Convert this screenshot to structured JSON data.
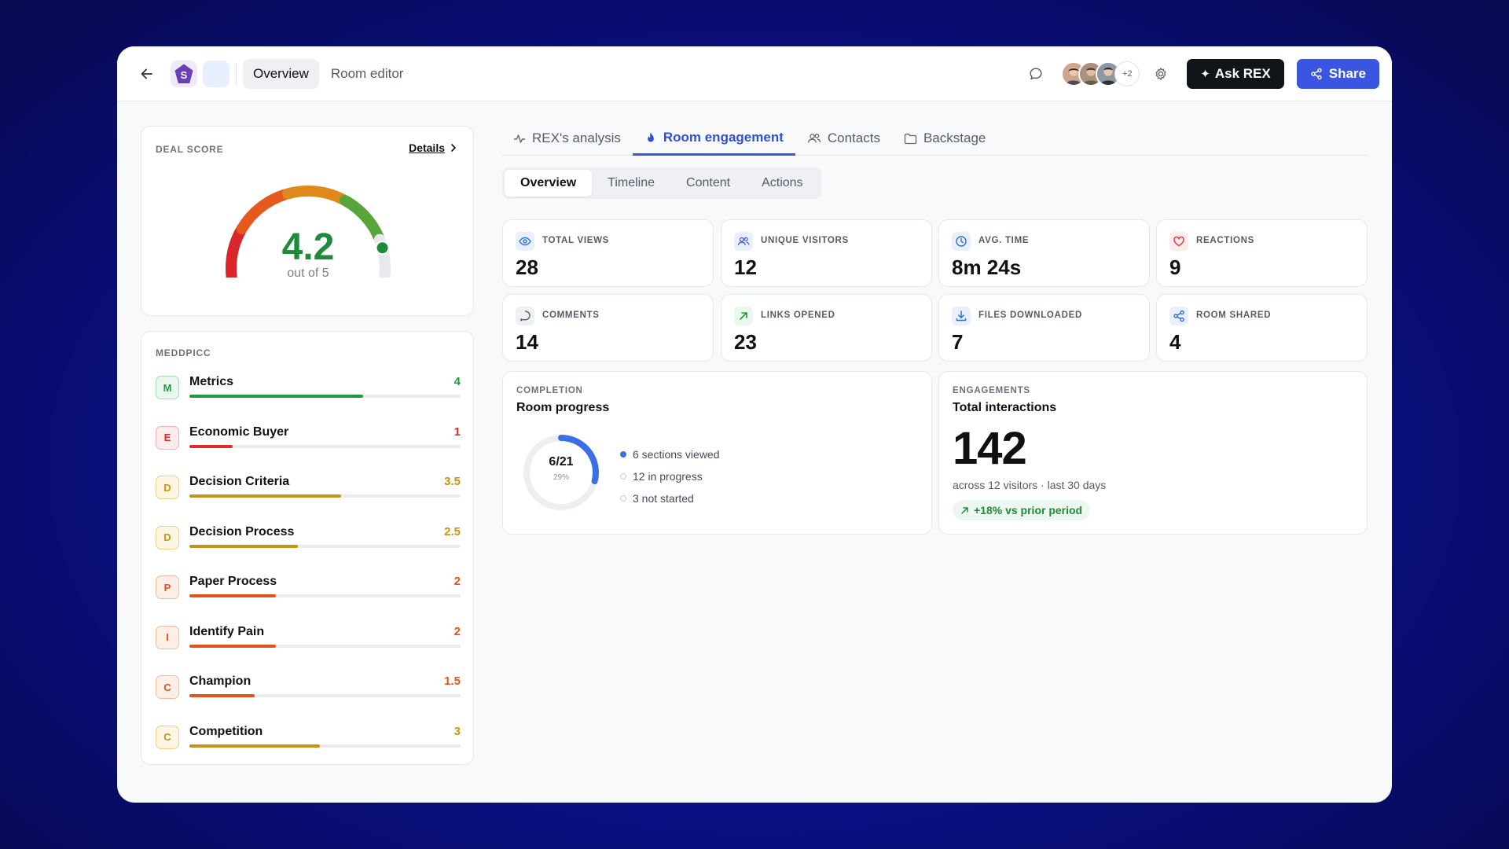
{
  "header": {
    "logo_letter": "S",
    "nav": [
      {
        "label": "Overview",
        "active": true
      },
      {
        "label": "Room editor",
        "active": false
      }
    ],
    "avatars_extra": "+2",
    "ask_label": "Ask REX",
    "share_label": "Share"
  },
  "deal_score": {
    "title": "DEAL SCORE",
    "details_label": "Details",
    "score": "4.2",
    "score_value": 4.2,
    "max": 5,
    "subtitle": "out of 5"
  },
  "meddpicc": {
    "title": "MEDDPICC",
    "max": 5,
    "items": [
      {
        "letter": "M",
        "name": "Metrics",
        "score": "4",
        "value": 4,
        "color": "#1f9a3e",
        "bg": "#e9f7ee",
        "border": "#9fdcb1"
      },
      {
        "letter": "E",
        "name": "Economic Buyer",
        "score": "1",
        "value": 1,
        "color": "#dc2c2c",
        "bg": "#fdecec",
        "border": "#f3b0b0"
      },
      {
        "letter": "D",
        "name": "Decision Criteria",
        "score": "3.5",
        "value": 3.5,
        "color": "#c99312",
        "bg": "#fdf6e2",
        "border": "#ecd083"
      },
      {
        "letter": "D",
        "name": "Decision Process",
        "score": "2.5",
        "value": 2.5,
        "color": "#c99312",
        "bg": "#fdf6e2",
        "border": "#ecd083"
      },
      {
        "letter": "P",
        "name": "Paper Process",
        "score": "2",
        "value": 2,
        "color": "#e0541a",
        "bg": "#fdefe7",
        "border": "#f2bd9e"
      },
      {
        "letter": "I",
        "name": "Identify Pain",
        "score": "2",
        "value": 2,
        "color": "#e0541a",
        "bg": "#fdefe7",
        "border": "#f2bd9e"
      },
      {
        "letter": "C",
        "name": "Champion",
        "score": "1.5",
        "value": 1.5,
        "color": "#e0541a",
        "bg": "#fdefe7",
        "border": "#f2bd9e"
      },
      {
        "letter": "C",
        "name": "Competition",
        "score": "3",
        "value": 3,
        "color": "#c99312",
        "bg": "#fdf6e2",
        "border": "#ecd083"
      }
    ]
  },
  "tabs": [
    {
      "label": "REX's analysis",
      "icon": "activity-icon",
      "active": false
    },
    {
      "label": "Room engagement",
      "icon": "flame-icon",
      "active": true
    },
    {
      "label": "Contacts",
      "icon": "users-icon",
      "active": false
    },
    {
      "label": "Backstage",
      "icon": "folder-icon",
      "active": false
    }
  ],
  "subtabs": [
    {
      "label": "Overview",
      "active": true
    },
    {
      "label": "Timeline",
      "active": false
    },
    {
      "label": "Content",
      "active": false
    },
    {
      "label": "Actions",
      "active": false
    }
  ],
  "stats": [
    {
      "label": "TOTAL VIEWS",
      "value": "28",
      "icon": "eye-icon",
      "color": "#2f6bd8",
      "bg": "#e8f0fd"
    },
    {
      "label": "UNIQUE VISITORS",
      "value": "12",
      "icon": "users-icon",
      "color": "#3a55e0",
      "bg": "#ebeefd"
    },
    {
      "label": "AVG. TIME",
      "value": "8m 24s",
      "icon": "clock-icon",
      "color": "#2f6bd8",
      "bg": "#e8f0fd"
    },
    {
      "label": "REACTIONS",
      "value": "9",
      "icon": "heart-icon",
      "color": "#e03a3a",
      "bg": "#fdecec"
    },
    {
      "label": "COMMENTS",
      "value": "14",
      "icon": "comment-icon",
      "color": "#555b66",
      "bg": "#eef0f3"
    },
    {
      "label": "LINKS OPENED",
      "value": "23",
      "icon": "arrow-up-right-icon",
      "color": "#1f9a3e",
      "bg": "#e9f7ee"
    },
    {
      "label": "FILES DOWNLOADED",
      "value": "7",
      "icon": "download-icon",
      "color": "#2f6bd8",
      "bg": "#e8f0fd"
    },
    {
      "label": "ROOM SHARED",
      "value": "4",
      "icon": "share-icon",
      "color": "#2f6bd8",
      "bg": "#e8f0fd"
    }
  ],
  "completion": {
    "caption": "COMPLETION",
    "title": "Room progress",
    "progress_text": "6/21",
    "percent_text": "29%",
    "fraction": 0.29,
    "legend": [
      {
        "label": "6 sections viewed",
        "color": "#3a6fe6",
        "filled": true
      },
      {
        "label": "12 in progress",
        "color": "#c8ccd3",
        "filled": false
      },
      {
        "label": "3 not started",
        "color": "#c8ccd3",
        "filled": false
      }
    ]
  },
  "engagements": {
    "caption": "ENGAGEMENTS",
    "title": "Total interactions",
    "value": "142",
    "subtitle": "across 12 visitors · last 30 days",
    "trend": "+18% vs prior period"
  }
}
